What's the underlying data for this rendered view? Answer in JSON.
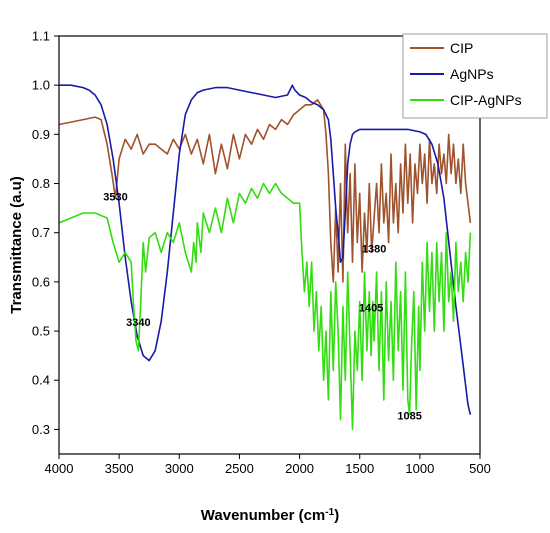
{
  "chart_data": {
    "type": "line",
    "title": "",
    "xlabel": "Wavenumber (cm",
    "xlabel_sup": "-1",
    "xlabel_close": ")",
    "ylabel": "Transmittance (a.u)",
    "xlim": [
      4000,
      500
    ],
    "ylim": [
      0.25,
      1.1
    ],
    "x_ticks": [
      4000,
      3500,
      3000,
      2500,
      2000,
      1500,
      1000,
      500
    ],
    "y_ticks": [
      0.3,
      0.4,
      0.5,
      0.6,
      0.7,
      0.8,
      0.9,
      1.0,
      1.1
    ],
    "x_tick_labels": [
      "4000",
      "3500",
      "3000",
      "2500",
      "2000",
      "1500",
      "1000",
      "500"
    ],
    "y_tick_labels": [
      "0.3",
      "0.4",
      "0.5",
      "0.6",
      "0.7",
      "0.8",
      "0.9",
      "1.0",
      "1.1"
    ],
    "legend_position": "top-right",
    "grid": false,
    "series": [
      {
        "name": "CIP",
        "color": "#a0522d",
        "x": [
          4000,
          3900,
          3800,
          3700,
          3650,
          3600,
          3560,
          3530,
          3500,
          3450,
          3400,
          3350,
          3300,
          3250,
          3200,
          3150,
          3100,
          3050,
          3000,
          2950,
          2900,
          2850,
          2800,
          2750,
          2700,
          2650,
          2600,
          2550,
          2500,
          2450,
          2400,
          2350,
          2300,
          2250,
          2200,
          2150,
          2100,
          2050,
          2000,
          1950,
          1900,
          1850,
          1800,
          1780,
          1760,
          1740,
          1720,
          1700,
          1680,
          1660,
          1640,
          1620,
          1600,
          1580,
          1560,
          1540,
          1520,
          1500,
          1480,
          1460,
          1440,
          1420,
          1400,
          1380,
          1360,
          1340,
          1320,
          1300,
          1280,
          1260,
          1240,
          1220,
          1200,
          1180,
          1160,
          1140,
          1120,
          1100,
          1080,
          1060,
          1040,
          1020,
          1000,
          980,
          960,
          940,
          920,
          900,
          880,
          860,
          840,
          820,
          800,
          780,
          760,
          740,
          720,
          700,
          680,
          660,
          640,
          620,
          600,
          580
        ],
        "y": [
          0.92,
          0.925,
          0.93,
          0.935,
          0.93,
          0.88,
          0.82,
          0.77,
          0.85,
          0.89,
          0.87,
          0.9,
          0.86,
          0.88,
          0.88,
          0.87,
          0.86,
          0.89,
          0.87,
          0.9,
          0.86,
          0.89,
          0.84,
          0.9,
          0.82,
          0.88,
          0.83,
          0.9,
          0.85,
          0.9,
          0.88,
          0.91,
          0.89,
          0.92,
          0.91,
          0.93,
          0.92,
          0.94,
          0.95,
          0.96,
          0.96,
          0.97,
          0.95,
          0.9,
          0.82,
          0.68,
          0.6,
          0.75,
          0.62,
          0.8,
          0.6,
          0.88,
          0.7,
          0.82,
          0.64,
          0.84,
          0.68,
          0.78,
          0.62,
          0.74,
          0.66,
          0.8,
          0.66,
          0.73,
          0.8,
          0.7,
          0.84,
          0.72,
          0.78,
          0.68,
          0.86,
          0.72,
          0.8,
          0.7,
          0.84,
          0.74,
          0.88,
          0.76,
          0.86,
          0.72,
          0.84,
          0.78,
          0.88,
          0.8,
          0.86,
          0.76,
          0.89,
          0.8,
          0.84,
          0.78,
          0.88,
          0.82,
          0.86,
          0.8,
          0.9,
          0.82,
          0.88,
          0.8,
          0.85,
          0.78,
          0.88,
          0.8,
          0.76,
          0.72
        ]
      },
      {
        "name": "AgNPs",
        "color": "#1a1aa8",
        "x": [
          4000,
          3900,
          3800,
          3750,
          3700,
          3650,
          3600,
          3550,
          3500,
          3450,
          3400,
          3350,
          3300,
          3250,
          3200,
          3150,
          3100,
          3050,
          3000,
          2950,
          2900,
          2850,
          2800,
          2700,
          2600,
          2500,
          2400,
          2300,
          2200,
          2100,
          2060,
          2040,
          2020,
          2000,
          1950,
          1900,
          1850,
          1800,
          1760,
          1740,
          1720,
          1700,
          1680,
          1660,
          1640,
          1620,
          1600,
          1580,
          1560,
          1540,
          1500,
          1400,
          1300,
          1200,
          1100,
          1000,
          950,
          900,
          850,
          800,
          750,
          700,
          650,
          620,
          600,
          580
        ],
        "y": [
          1.0,
          1.0,
          0.995,
          0.99,
          0.98,
          0.96,
          0.92,
          0.85,
          0.76,
          0.65,
          0.56,
          0.49,
          0.45,
          0.44,
          0.46,
          0.52,
          0.62,
          0.74,
          0.86,
          0.94,
          0.97,
          0.985,
          0.99,
          0.995,
          0.995,
          0.99,
          0.985,
          0.98,
          0.975,
          0.98,
          1.0,
          0.99,
          0.985,
          0.98,
          0.975,
          0.965,
          0.96,
          0.95,
          0.93,
          0.89,
          0.82,
          0.75,
          0.7,
          0.64,
          0.65,
          0.74,
          0.84,
          0.88,
          0.9,
          0.905,
          0.91,
          0.91,
          0.91,
          0.91,
          0.91,
          0.905,
          0.9,
          0.88,
          0.84,
          0.77,
          0.66,
          0.55,
          0.45,
          0.39,
          0.35,
          0.33
        ]
      },
      {
        "name": "CIP-AgNPs",
        "color": "#33dd11",
        "x": [
          4000,
          3900,
          3800,
          3700,
          3600,
          3550,
          3500,
          3450,
          3400,
          3380,
          3360,
          3340,
          3320,
          3300,
          3280,
          3250,
          3200,
          3150,
          3100,
          3050,
          3000,
          2950,
          2900,
          2880,
          2860,
          2850,
          2820,
          2800,
          2750,
          2700,
          2650,
          2600,
          2550,
          2500,
          2450,
          2400,
          2350,
          2300,
          2250,
          2200,
          2150,
          2100,
          2050,
          2000,
          1980,
          1960,
          1940,
          1920,
          1900,
          1880,
          1860,
          1840,
          1820,
          1800,
          1780,
          1760,
          1740,
          1720,
          1700,
          1680,
          1660,
          1640,
          1620,
          1600,
          1580,
          1560,
          1540,
          1520,
          1500,
          1480,
          1460,
          1440,
          1420,
          1405,
          1390,
          1380,
          1360,
          1340,
          1320,
          1300,
          1280,
          1260,
          1240,
          1220,
          1200,
          1180,
          1160,
          1140,
          1120,
          1100,
          1085,
          1070,
          1050,
          1030,
          1010,
          1000,
          980,
          960,
          940,
          920,
          900,
          880,
          860,
          840,
          820,
          800,
          780,
          760,
          740,
          720,
          700,
          680,
          660,
          640,
          620,
          600,
          580
        ],
        "y": [
          0.72,
          0.73,
          0.74,
          0.74,
          0.73,
          0.68,
          0.64,
          0.66,
          0.64,
          0.55,
          0.48,
          0.46,
          0.56,
          0.68,
          0.62,
          0.69,
          0.7,
          0.66,
          0.7,
          0.68,
          0.72,
          0.66,
          0.62,
          0.68,
          0.64,
          0.72,
          0.66,
          0.74,
          0.7,
          0.75,
          0.7,
          0.77,
          0.72,
          0.78,
          0.76,
          0.79,
          0.77,
          0.8,
          0.78,
          0.8,
          0.78,
          0.77,
          0.76,
          0.76,
          0.66,
          0.58,
          0.64,
          0.55,
          0.64,
          0.5,
          0.58,
          0.46,
          0.55,
          0.4,
          0.5,
          0.36,
          0.58,
          0.42,
          0.6,
          0.5,
          0.32,
          0.55,
          0.4,
          0.62,
          0.46,
          0.3,
          0.5,
          0.42,
          0.56,
          0.4,
          0.62,
          0.46,
          0.58,
          0.45,
          0.56,
          0.48,
          0.62,
          0.42,
          0.58,
          0.36,
          0.6,
          0.44,
          0.56,
          0.4,
          0.64,
          0.46,
          0.58,
          0.38,
          0.62,
          0.36,
          0.33,
          0.46,
          0.58,
          0.34,
          0.55,
          0.42,
          0.64,
          0.5,
          0.68,
          0.54,
          0.66,
          0.5,
          0.68,
          0.56,
          0.66,
          0.5,
          0.7,
          0.56,
          0.62,
          0.52,
          0.68,
          0.58,
          0.64,
          0.56,
          0.66,
          0.6,
          0.7
        ]
      }
    ],
    "annotations": [
      {
        "text": "3530",
        "x": 3530,
        "y": 0.765
      },
      {
        "text": "3340",
        "x": 3340,
        "y": 0.51
      },
      {
        "text": "1380",
        "x": 1380,
        "y": 0.66
      },
      {
        "text": "1405",
        "x": 1405,
        "y": 0.54
      },
      {
        "text": "1085",
        "x": 1085,
        "y": 0.32
      }
    ]
  }
}
